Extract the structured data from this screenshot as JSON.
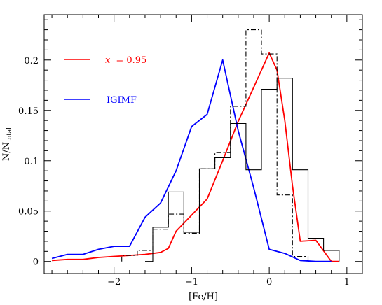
{
  "chart_data": {
    "type": "line",
    "xlabel": "[Fe/H]",
    "ylabel": "N/N",
    "ylabel_sub": "total",
    "xlim": [
      -2.9,
      1.2
    ],
    "ylim": [
      -0.012,
      0.245
    ],
    "x_ticks": [
      -2,
      -1,
      0,
      1
    ],
    "y_ticks": [
      0,
      0.05,
      0.1,
      0.15,
      0.2
    ],
    "x_tick_labels": [
      "−2",
      "−1",
      "0",
      "1"
    ],
    "y_tick_labels": [
      "0",
      "0.05",
      "0.1",
      "0.15",
      "0.2"
    ],
    "legend": [
      {
        "label": "x = 0.95",
        "label_var": "x",
        "label_rest": "= 0.95",
        "color": "#ff0000"
      },
      {
        "label": "IGIMF",
        "color": "#0000ff"
      }
    ],
    "series": [
      {
        "name": "x = 0.95",
        "kind": "line",
        "color": "#ff0000",
        "x": [
          -2.8,
          -2.6,
          -2.4,
          -2.2,
          -2.0,
          -1.8,
          -1.6,
          -1.4,
          -1.3,
          -1.2,
          -1.0,
          -0.8,
          -0.6,
          -0.4,
          -0.2,
          0.0,
          0.1,
          0.2,
          0.3,
          0.4,
          0.6,
          0.8,
          0.9
        ],
        "y": [
          0.001,
          0.002,
          0.002,
          0.004,
          0.005,
          0.006,
          0.007,
          0.009,
          0.013,
          0.03,
          0.046,
          0.062,
          0.1,
          0.139,
          0.173,
          0.207,
          0.19,
          0.14,
          0.075,
          0.02,
          0.021,
          0.0,
          0.0
        ]
      },
      {
        "name": "IGIMF",
        "kind": "line",
        "color": "#0000ff",
        "x": [
          -2.8,
          -2.6,
          -2.4,
          -2.2,
          -2.0,
          -1.8,
          -1.6,
          -1.4,
          -1.2,
          -1.0,
          -0.8,
          -0.6,
          -0.4,
          -0.2,
          0.0,
          0.2,
          0.4,
          0.6,
          0.8
        ],
        "y": [
          0.003,
          0.007,
          0.007,
          0.012,
          0.015,
          0.015,
          0.044,
          0.058,
          0.09,
          0.134,
          0.146,
          0.2,
          0.13,
          0.073,
          0.012,
          0.008,
          0.001,
          0.0,
          0.0
        ]
      },
      {
        "name": "",
        "kind": "step",
        "style": "solid",
        "color": "#000000",
        "edges": [
          -1.6,
          -1.5,
          -1.3,
          -1.1,
          -0.9,
          -0.7,
          -0.5,
          -0.3,
          -0.1,
          0.1,
          0.3,
          0.5,
          0.7,
          0.9
        ],
        "values": [
          0.0,
          0.034,
          0.069,
          0.029,
          0.092,
          0.103,
          0.137,
          0.091,
          0.171,
          0.182,
          0.091,
          0.023,
          0.011
        ]
      },
      {
        "name": "",
        "kind": "step",
        "style": "dashdot",
        "color": "#000000",
        "edges": [
          -1.9,
          -1.7,
          -1.5,
          -1.3,
          -1.1,
          -0.9,
          -0.7,
          -0.5,
          -0.3,
          -0.1,
          0.1,
          0.3,
          0.5
        ],
        "values": [
          0.006,
          0.011,
          0.032,
          0.047,
          0.028,
          0.092,
          0.108,
          0.154,
          0.23,
          0.206,
          0.066,
          0.005
        ]
      }
    ]
  }
}
